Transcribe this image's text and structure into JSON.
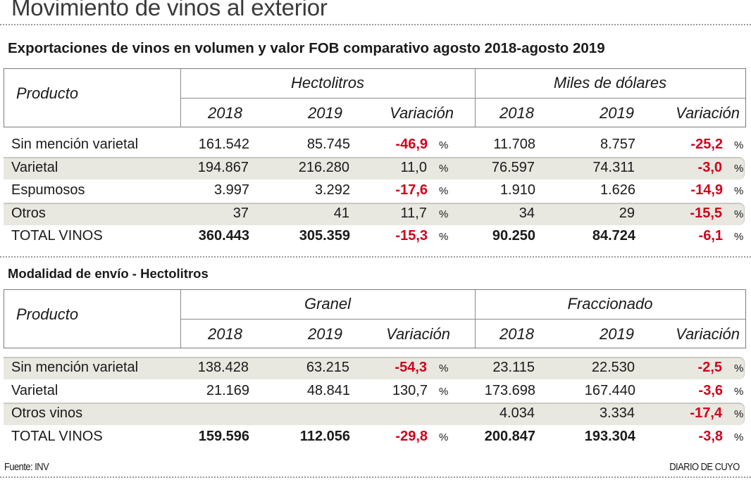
{
  "title": "Movimiento de vinos al exterior",
  "table1": {
    "subtitle": "Exportaciones de vinos en volumen y valor FOB comparativo agosto 2018-agosto 2019",
    "product_header": "Producto",
    "group_left": "Hectolitros",
    "group_right": "Miles de dólares",
    "columns": [
      "2018",
      "2019",
      "Variación",
      "2018",
      "2019",
      "Variación"
    ],
    "percent_sign": "%",
    "rows": [
      {
        "label": "Sin mención varietal",
        "a2018": "161.542",
        "a2019": "85.745",
        "avar": "-46,9",
        "b2018": "11.708",
        "b2019": "8.757",
        "bvar": "-25,2",
        "shaded": false
      },
      {
        "label": "Varietal",
        "a2018": "194.867",
        "a2019": "216.280",
        "avar": "11,0",
        "b2018": "76.597",
        "b2019": "74.311",
        "bvar": "-3,0",
        "shaded": true
      },
      {
        "label": "Espumosos",
        "a2018": "3.997",
        "a2019": "3.292",
        "avar": "-17,6",
        "b2018": "1.910",
        "b2019": "1.626",
        "bvar": "-14,9",
        "shaded": false
      },
      {
        "label": "Otros",
        "a2018": "37",
        "a2019": "41",
        "avar": "11,7",
        "b2018": "34",
        "b2019": "29",
        "bvar": "-15,5",
        "shaded": true
      },
      {
        "label": "TOTAL VINOS",
        "a2018": "360.443",
        "a2019": "305.359",
        "avar": "-15,3",
        "b2018": "90.250",
        "b2019": "84.724",
        "bvar": "-6,1",
        "shaded": false,
        "total": true
      }
    ]
  },
  "table2": {
    "subtitle": "Modalidad de envío - Hectolitros",
    "product_header": "Producto",
    "group_left": "Granel",
    "group_right": "Fraccionado",
    "columns": [
      "2018",
      "2019",
      "Variación",
      "2018",
      "2019",
      "Variación"
    ],
    "percent_sign": "%",
    "rows": [
      {
        "label": "Sin mención varietal",
        "a2018": "138.428",
        "a2019": "63.215",
        "avar": "-54,3",
        "b2018": "23.115",
        "b2019": "22.530",
        "bvar": "-2,5",
        "shaded": true
      },
      {
        "label": "Varietal",
        "a2018": "21.169",
        "a2019": "48.841",
        "avar": "130,7",
        "b2018": "173.698",
        "b2019": "167.440",
        "bvar": "-3,6",
        "shaded": false
      },
      {
        "label": "Otros vinos",
        "a2018": "",
        "a2019": "",
        "avar": "",
        "b2018": "4.034",
        "b2019": "3.334",
        "bvar": "-17,4",
        "shaded": true
      },
      {
        "label": "TOTAL VINOS",
        "a2018": "159.596",
        "a2019": "112.056",
        "avar": "-29,8",
        "b2018": "200.847",
        "b2019": "193.304",
        "bvar": "-3,8",
        "shaded": false,
        "total": true
      }
    ]
  },
  "footer": {
    "source": "Fuente: INV",
    "credit": "DIARIO DE CUYO"
  },
  "colors": {
    "negative": "#d0021b",
    "row_shade": "#e8e7e0",
    "text": "#1a1a1a"
  }
}
